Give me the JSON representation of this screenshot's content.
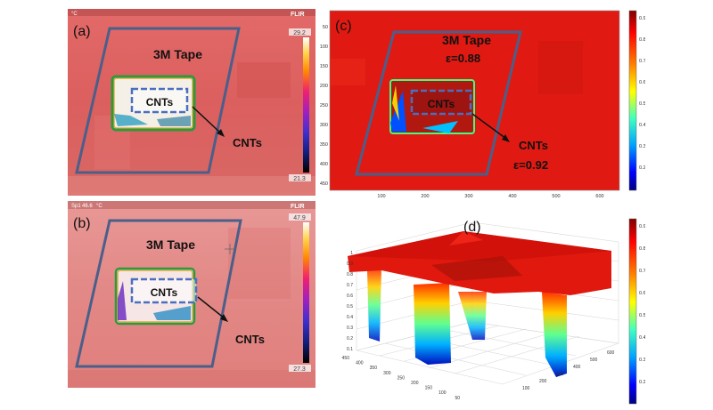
{
  "panels": {
    "a": {
      "letter": "(a)",
      "tape_label": "3M Tape",
      "cnt_box_label": "CNTs",
      "cnt_arrow_label": "CNTs",
      "flir_logo": "FLIR",
      "unit": "°C",
      "scale_max": "29.2",
      "scale_min": "21.3"
    },
    "b": {
      "letter": "(b)",
      "tape_label": "3M Tape",
      "cnt_box_label": "CNTs",
      "cnt_arrow_label": "CNTs",
      "flir_logo": "FLIR",
      "unit": "°C",
      "header_text": "Sp1",
      "header_value": "46.6",
      "scale_max": "47.9",
      "scale_min": "27.3"
    },
    "c": {
      "letter": "(c)",
      "tape_label": "3M Tape",
      "tape_emissivity": "ε=0.88",
      "cnt_box_label": "CNTs",
      "cnt_arrow_label": "CNTs",
      "cnt_emissivity": "ε=0.92",
      "y_ticks": [
        "50",
        "100",
        "150",
        "200",
        "250",
        "300",
        "350",
        "400",
        "450"
      ],
      "x_ticks": [
        "100",
        "200",
        "300",
        "400",
        "500",
        "600"
      ],
      "colorbar_ticks": [
        "0.9",
        "0.8",
        "0.7",
        "0.6",
        "0.5",
        "0.4",
        "0.3",
        "0.2"
      ]
    },
    "d": {
      "letter": "(d)",
      "z_ticks": [
        "1",
        "0.9",
        "0.8",
        "0.7",
        "0.6",
        "0.5",
        "0.4",
        "0.3",
        "0.2",
        "0.1"
      ],
      "y_ticks": [
        "450",
        "400",
        "350",
        "300",
        "250",
        "200",
        "150",
        "100",
        "50"
      ],
      "x_ticks": [
        "100",
        "200",
        "300",
        "400",
        "500",
        "600"
      ],
      "colorbar_ticks": [
        "0.9",
        "0.8",
        "0.7",
        "0.6",
        "0.5",
        "0.4",
        "0.3",
        "0.2"
      ]
    }
  },
  "colors": {
    "tape_outline": "#4a5f8a",
    "cnt_box_dash": "#4a6fc0",
    "thermal_bg_a": "#d65a5a",
    "thermal_bg_b": "#e28a8a",
    "emissivity_bg": "#e01a12"
  }
}
